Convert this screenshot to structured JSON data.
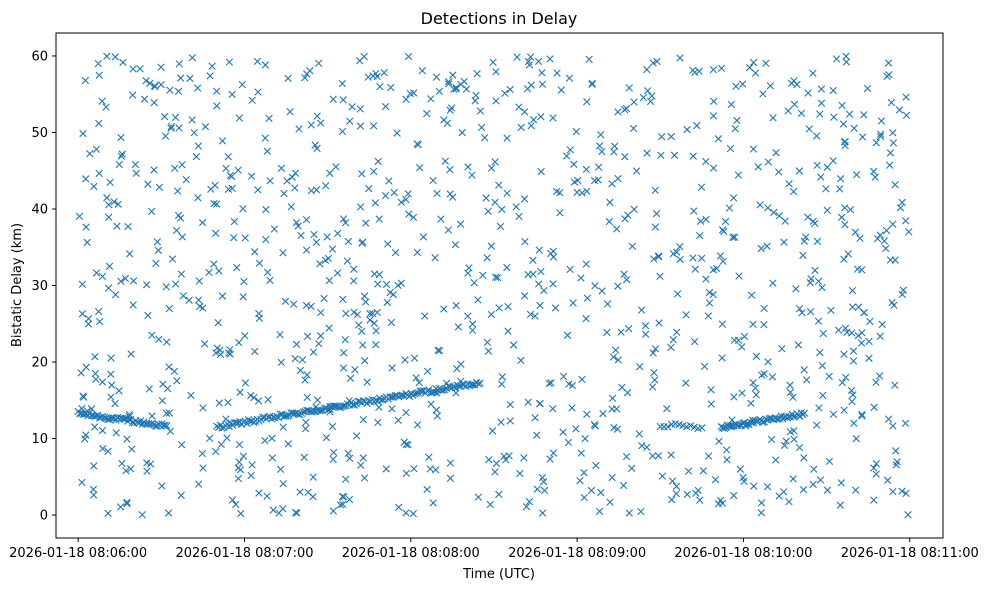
{
  "chart_data": {
    "type": "scatter",
    "title": "Detections in Delay",
    "xlabel": "Time (UTC)",
    "ylabel": "Bistatic Delay (km)",
    "x_unit": "seconds after 2026-01-18 08:06:00",
    "xlim": [
      -8,
      312
    ],
    "ylim": [
      -3,
      63
    ],
    "x_ticks": [
      0,
      60,
      120,
      180,
      240,
      300
    ],
    "x_tick_labels": [
      "2026-01-18 08:06:00",
      "2026-01-18 08:07:00",
      "2026-01-18 08:08:00",
      "2026-01-18 08:09:00",
      "2026-01-18 08:10:00",
      "2026-01-18 08:11:00"
    ],
    "y_ticks": [
      0,
      10,
      20,
      30,
      40,
      50,
      60
    ],
    "y_tick_labels": [
      "0",
      "10",
      "20",
      "30",
      "40",
      "50",
      "60"
    ],
    "grid": false,
    "marker": "x",
    "color": "#1f77b4",
    "tracks": [
      {
        "x_range": [
          0,
          32
        ],
        "y_start": 13.3,
        "y_end": 11.6,
        "points": 55
      },
      {
        "x_range": [
          50,
          145
        ],
        "y_start": 11.5,
        "y_end": 17.3,
        "points": 150
      },
      {
        "x_range": [
          210,
          225
        ],
        "y_start": 11.8,
        "y_end": 11.5,
        "points": 12
      },
      {
        "x_range": [
          232,
          262
        ],
        "y_start": 11.5,
        "y_end": 13.2,
        "points": 55
      }
    ],
    "noise": {
      "count": 1100,
      "x_range": [
        0,
        300
      ],
      "y_range": [
        0,
        60
      ]
    }
  }
}
